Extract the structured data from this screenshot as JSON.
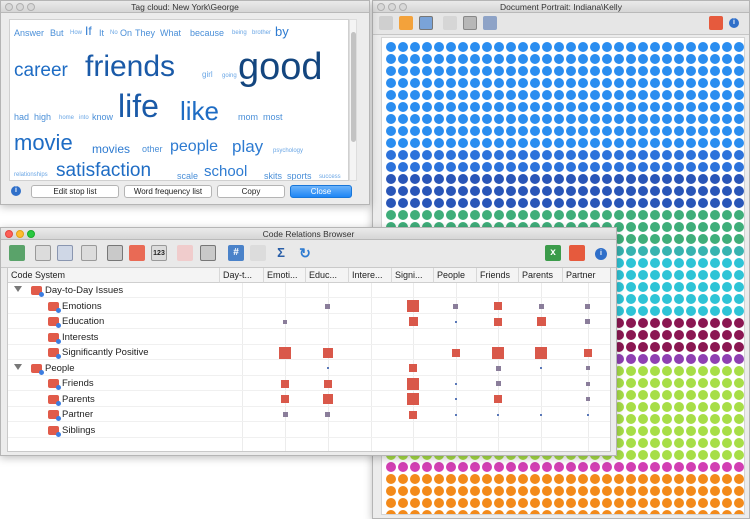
{
  "tagcloud": {
    "title": "Tag cloud: New York\\George",
    "words": [
      {
        "t": "Answer",
        "s": 9,
        "c": "#4a8fd8"
      },
      {
        "t": "But",
        "s": 9,
        "c": "#4a8fd8"
      },
      {
        "t": "How",
        "s": 6,
        "c": "#6aa6e5"
      },
      {
        "t": "If",
        "s": 12,
        "c": "#2e7bd1"
      },
      {
        "t": "It",
        "s": 9,
        "c": "#4a8fd8"
      },
      {
        "t": "No",
        "s": 6,
        "c": "#6aa6e5"
      },
      {
        "t": "On",
        "s": 9,
        "c": "#4a8fd8"
      },
      {
        "t": "They",
        "s": 9,
        "c": "#4a8fd8"
      },
      {
        "t": "What",
        "s": 9,
        "c": "#4a8fd8"
      },
      {
        "t": "because",
        "s": 9,
        "c": "#4a8fd8"
      },
      {
        "t": "being",
        "s": 6,
        "c": "#6aa6e5"
      },
      {
        "t": "brother",
        "s": 6,
        "c": "#6aa6e5"
      },
      {
        "t": "by",
        "s": 13,
        "c": "#2e7bd1"
      },
      {
        "t": "career",
        "s": 19,
        "c": "#1e6cc4"
      },
      {
        "t": "friends",
        "s": 30,
        "c": "#1a5aa8"
      },
      {
        "t": "girl",
        "s": 8,
        "c": "#6aa6e5"
      },
      {
        "t": "going",
        "s": 6,
        "c": "#6aa6e5"
      },
      {
        "t": "good",
        "s": 38,
        "c": "#14467f"
      },
      {
        "t": "had",
        "s": 9,
        "c": "#4a8fd8"
      },
      {
        "t": "high",
        "s": 9,
        "c": "#4a8fd8"
      },
      {
        "t": "home",
        "s": 6,
        "c": "#6aa6e5"
      },
      {
        "t": "into",
        "s": 6,
        "c": "#6aa6e5"
      },
      {
        "t": "know",
        "s": 9,
        "c": "#4a8fd8"
      },
      {
        "t": "life",
        "s": 32,
        "c": "#1a5aa8"
      },
      {
        "t": "like",
        "s": 26,
        "c": "#1e6cc4"
      },
      {
        "t": "mom",
        "s": 9,
        "c": "#4a8fd8"
      },
      {
        "t": "most",
        "s": 9,
        "c": "#4a8fd8"
      },
      {
        "t": "movie",
        "s": 22,
        "c": "#1e6cc4"
      },
      {
        "t": "movies",
        "s": 12,
        "c": "#2e7bd1"
      },
      {
        "t": "other",
        "s": 9,
        "c": "#4a8fd8"
      },
      {
        "t": "people",
        "s": 16,
        "c": "#2e7bd1"
      },
      {
        "t": "play",
        "s": 17,
        "c": "#2e7bd1"
      },
      {
        "t": "psychology",
        "s": 6,
        "c": "#6aa6e5"
      },
      {
        "t": "relationships",
        "s": 6,
        "c": "#6aa6e5"
      },
      {
        "t": "satisfaction",
        "s": 19,
        "c": "#1e6cc4"
      },
      {
        "t": "scale",
        "s": 9,
        "c": "#4a8fd8"
      },
      {
        "t": "school",
        "s": 15,
        "c": "#2e7bd1"
      },
      {
        "t": "skits",
        "s": 9,
        "c": "#4a8fd8"
      },
      {
        "t": "sports",
        "s": 9,
        "c": "#4a8fd8"
      },
      {
        "t": "success",
        "s": 6,
        "c": "#6aa6e5"
      }
    ],
    "buttons": {
      "stop": "Edit stop list",
      "freq": "Word frequency list",
      "copy": "Copy",
      "close": "Close"
    }
  },
  "portrait": {
    "title": "Document Portrait: Indiana\\Kelly",
    "colors": {
      "blue1": "#2a8df0",
      "blue2": "#2c72db",
      "navy": "#2956b8",
      "green": "#3fae7a",
      "teal": "#37b3b0",
      "cyan": "#2ec4d6",
      "maroon": "#8b1752",
      "purple": "#8f3fb2",
      "lime": "#a7de47",
      "pink": "#d23fb3",
      "orange": "#f38a1a"
    }
  },
  "crb": {
    "title": "Code Relations Browser",
    "headers": [
      "Code System",
      "Day-t...",
      "Emoti...",
      "Educ...",
      "Intere...",
      "Signi...",
      "People",
      "Friends",
      "Parents",
      "Partner"
    ],
    "rows": [
      {
        "label": "Day-to-Day Issues",
        "level": 0,
        "group": true
      },
      {
        "label": "Emotions",
        "level": 1
      },
      {
        "label": "Education",
        "level": 1
      },
      {
        "label": "Interests",
        "level": 1
      },
      {
        "label": "Significantly Positive",
        "level": 1
      },
      {
        "label": "People",
        "level": 0,
        "group": true
      },
      {
        "label": "Friends",
        "level": 1
      },
      {
        "label": "Parents",
        "level": 1
      },
      {
        "label": "Partner",
        "level": 1
      },
      {
        "label": "Siblings",
        "level": 1
      }
    ]
  }
}
